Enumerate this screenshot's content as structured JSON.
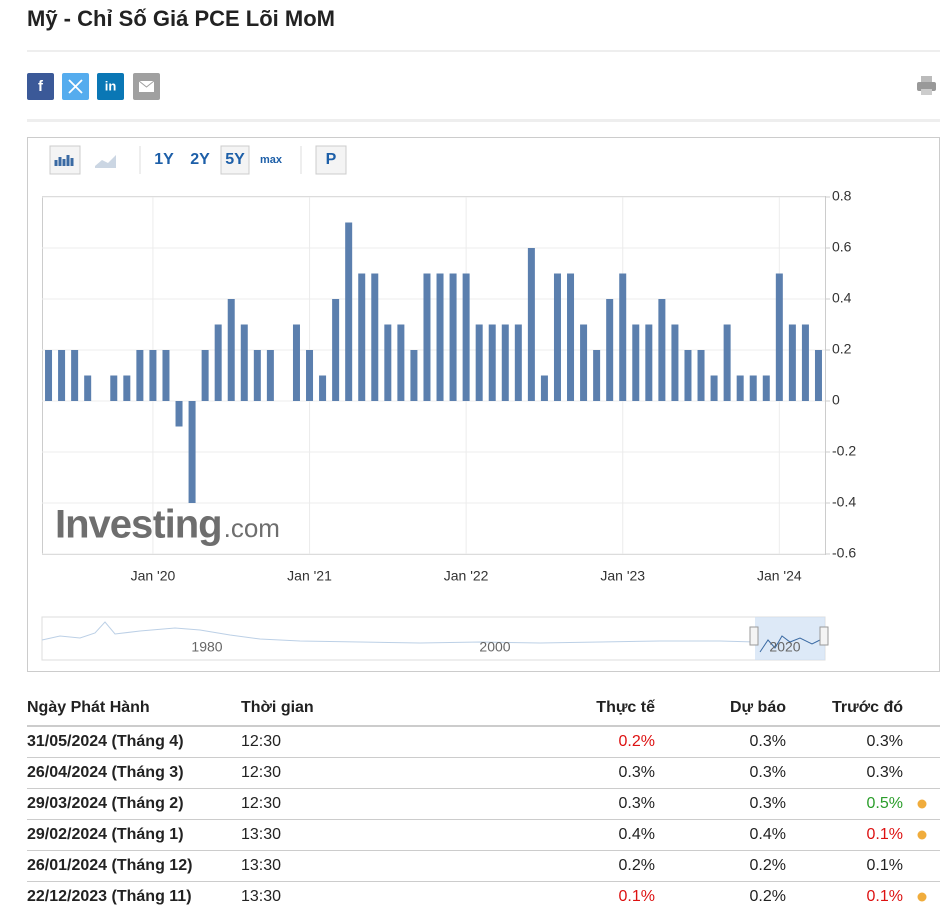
{
  "header": {
    "title": "Mỹ - Chỉ Số Giá PCE Lõi MoM",
    "share": [
      "f",
      "in"
    ]
  },
  "toolbar": [
    "1Y",
    "2Y",
    "5Y",
    "max",
    "P"
  ],
  "chart_data": {
    "type": "bar",
    "categories": [
      null,
      null,
      null,
      null,
      null,
      null,
      null,
      null,
      "Jan '20",
      null,
      null,
      null,
      null,
      null,
      null,
      null,
      null,
      null,
      null,
      null,
      "Jan '21",
      null,
      null,
      null,
      null,
      null,
      null,
      null,
      null,
      null,
      null,
      null,
      "Jan '22",
      null,
      null,
      null,
      null,
      null,
      null,
      null,
      null,
      null,
      null,
      null,
      "Jan '23",
      null,
      null,
      null,
      null,
      null,
      null,
      null,
      null,
      null,
      null,
      null,
      "Jan '24",
      null,
      null,
      null
    ],
    "values": [
      0.2,
      0.2,
      0.2,
      0.1,
      0,
      0.1,
      0.1,
      0.2,
      0.2,
      0.2,
      -0.1,
      -0.4,
      0.2,
      0.3,
      0.4,
      0.3,
      0.2,
      0.2,
      0,
      0.3,
      0.2,
      0.1,
      0.4,
      0.7,
      0.5,
      0.5,
      0.3,
      0.3,
      0.2,
      0.5,
      0.5,
      0.5,
      0.5,
      0.3,
      0.3,
      0.3,
      0.3,
      0.6,
      0.1,
      0.5,
      0.5,
      0.3,
      0.2,
      0.4,
      0.5,
      0.3,
      0.3,
      0.4,
      0.3,
      0.2,
      0.2,
      0.1,
      0.3,
      0.1,
      0.1,
      0.1,
      0.5,
      0.3,
      0.3,
      0.2
    ],
    "color": "#5b7fae",
    "ylim": [
      -0.6,
      0.8
    ],
    "yticks": [
      0.8,
      0.6,
      0.4,
      0.2,
      0,
      -0.2,
      -0.4,
      -0.6
    ],
    "grid": true,
    "watermark": [
      "Investing",
      ".com"
    ],
    "navigator_labels": [
      "1980",
      "2000",
      "2020"
    ]
  },
  "table": {
    "columns": [
      "Ngày Phát Hành",
      "Thời gian",
      "Thực tế",
      "Dự báo",
      "Trước đó"
    ],
    "rows": [
      {
        "cells": [
          "31/05/2024 (Tháng 4)",
          "12:30",
          "0.2%",
          "0.3%",
          "0.3%"
        ],
        "actual_color": "#dd1111"
      },
      {
        "cells": [
          "26/04/2024 (Tháng 3)",
          "12:30",
          "0.3%",
          "0.3%",
          "0.3%"
        ]
      },
      {
        "cells": [
          "29/03/2024 (Tháng 2)",
          "12:30",
          "0.3%",
          "0.3%",
          "0.5%"
        ],
        "previous_color": "#2a9d2a",
        "alert": true
      },
      {
        "cells": [
          "29/02/2024 (Tháng 1)",
          "13:30",
          "0.4%",
          "0.4%",
          "0.1%"
        ],
        "previous_color": "#dd1111",
        "alert": true
      },
      {
        "cells": [
          "26/01/2024 (Tháng 12)",
          "13:30",
          "0.2%",
          "0.2%",
          "0.1%"
        ]
      },
      {
        "cells": [
          "22/12/2023 (Tháng 11)",
          "13:30",
          "0.1%",
          "0.2%",
          "0.1%"
        ],
        "actual_color": "#dd1111",
        "previous_color": "#dd1111",
        "alert": true
      }
    ]
  }
}
